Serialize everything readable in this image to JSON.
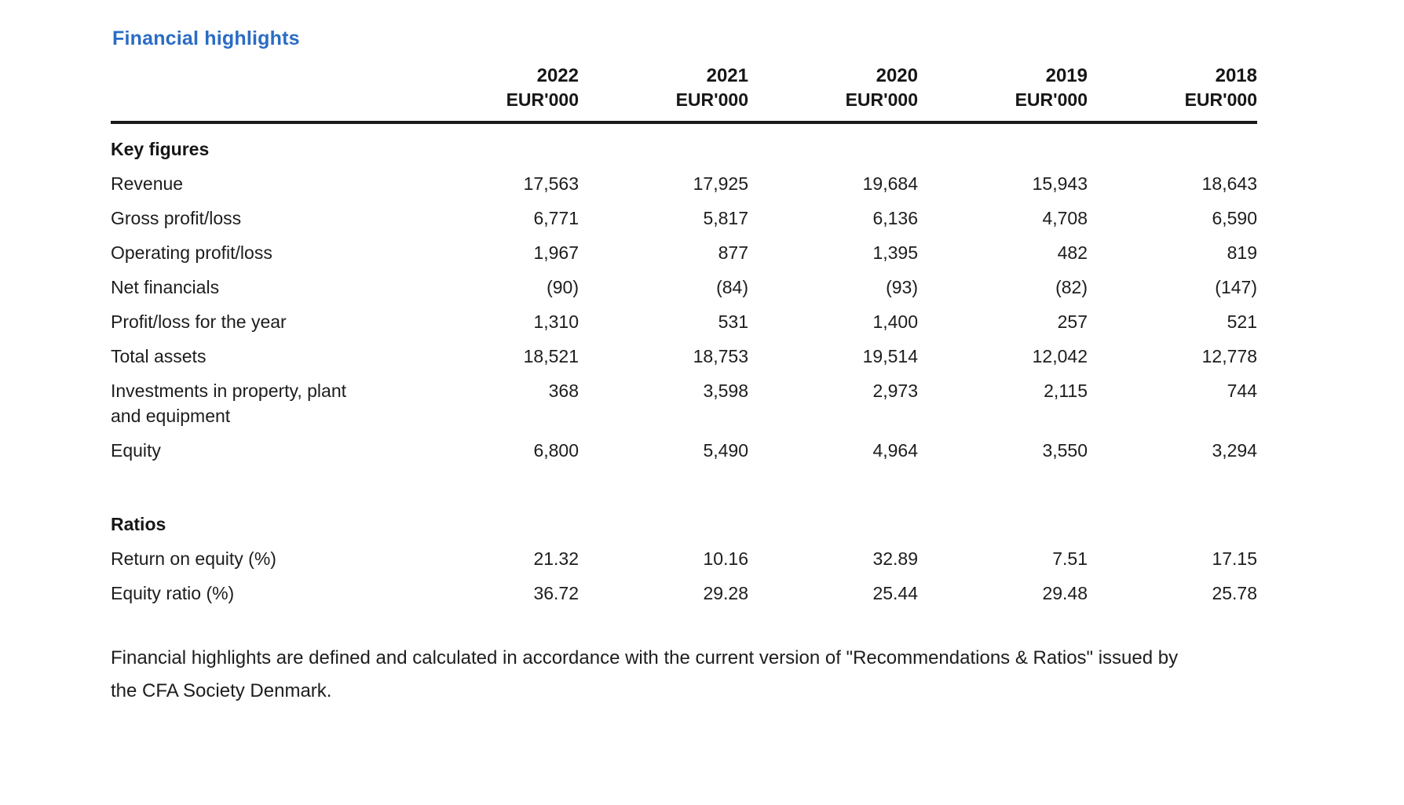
{
  "accent_color": "#2a6cc4",
  "text_color": "#1d1d1d",
  "rule_color": "#1a1a1a",
  "title": "Financial highlights",
  "table": {
    "columns": [
      {
        "year": "2022",
        "unit": "EUR'000"
      },
      {
        "year": "2021",
        "unit": "EUR'000"
      },
      {
        "year": "2020",
        "unit": "EUR'000"
      },
      {
        "year": "2019",
        "unit": "EUR'000"
      },
      {
        "year": "2018",
        "unit": "EUR'000"
      }
    ],
    "sections": [
      {
        "header": "Key figures",
        "rows": [
          {
            "label": "Revenue",
            "values": [
              "17,563",
              "17,925",
              "19,684",
              "15,943",
              "18,643"
            ]
          },
          {
            "label": "Gross profit/loss",
            "values": [
              "6,771",
              "5,817",
              "6,136",
              "4,708",
              "6,590"
            ]
          },
          {
            "label": "Operating profit/loss",
            "values": [
              "1,967",
              "877",
              "1,395",
              "482",
              "819"
            ]
          },
          {
            "label": "Net financials",
            "values": [
              "(90)",
              "(84)",
              "(93)",
              "(82)",
              "(147)"
            ]
          },
          {
            "label": "Profit/loss for the year",
            "values": [
              "1,310",
              "531",
              "1,400",
              "257",
              "521"
            ]
          },
          {
            "label": "Total assets",
            "values": [
              "18,521",
              "18,753",
              "19,514",
              "12,042",
              "12,778"
            ]
          },
          {
            "label": "Investments in property, plant and equipment",
            "values": [
              "368",
              "3,598",
              "2,973",
              "2,115",
              "744"
            ]
          },
          {
            "label": "Equity",
            "values": [
              "6,800",
              "5,490",
              "4,964",
              "3,550",
              "3,294"
            ]
          }
        ]
      },
      {
        "header": "Ratios",
        "rows": [
          {
            "label": "Return on equity (%)",
            "values": [
              "21.32",
              "10.16",
              "32.89",
              "7.51",
              "17.15"
            ]
          },
          {
            "label": "Equity ratio (%)",
            "values": [
              "36.72",
              "29.28",
              "25.44",
              "29.48",
              "25.78"
            ]
          }
        ]
      }
    ]
  },
  "footnote": "Financial highlights are defined and calculated in accordance with the current version of \"Recommendations & Ratios\" issued by the CFA Society Denmark."
}
